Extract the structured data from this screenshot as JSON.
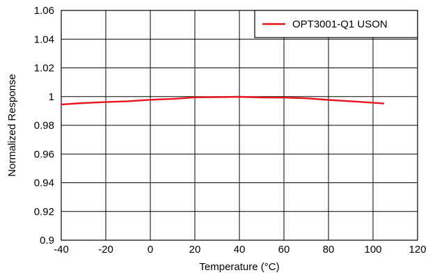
{
  "chart_data": {
    "type": "line",
    "title": "",
    "xlabel": "Temperature (°C)",
    "ylabel": "Normalized Response",
    "xlim": [
      -40,
      120
    ],
    "ylim": [
      0.9,
      1.06
    ],
    "x_ticks": [
      -40,
      -20,
      0,
      20,
      40,
      60,
      80,
      100,
      120
    ],
    "y_ticks": [
      0.9,
      0.92,
      0.94,
      0.96,
      0.98,
      1,
      1.02,
      1.04,
      1.06
    ],
    "x_tick_labels": [
      "-40",
      "-20",
      "0",
      "20",
      "40",
      "60",
      "80",
      "100",
      "120"
    ],
    "y_tick_labels": [
      "0.9",
      "0.92",
      "0.94",
      "0.96",
      "0.98",
      "1",
      "1.02",
      "1.04",
      "1.06"
    ],
    "grid": true,
    "legend_position": "top-right",
    "series": [
      {
        "name": "OPT3001-Q1 USON",
        "color": "#e8141c",
        "x": [
          -40,
          -30,
          -20,
          -10,
          0,
          10,
          20,
          30,
          40,
          50,
          60,
          70,
          80,
          90,
          100,
          105
        ],
        "y": [
          0.9945,
          0.9955,
          0.9962,
          0.9968,
          0.9978,
          0.9984,
          0.9995,
          0.9996,
          0.9999,
          0.9994,
          0.9993,
          0.9988,
          0.9977,
          0.9968,
          0.9957,
          0.9952
        ]
      }
    ]
  }
}
